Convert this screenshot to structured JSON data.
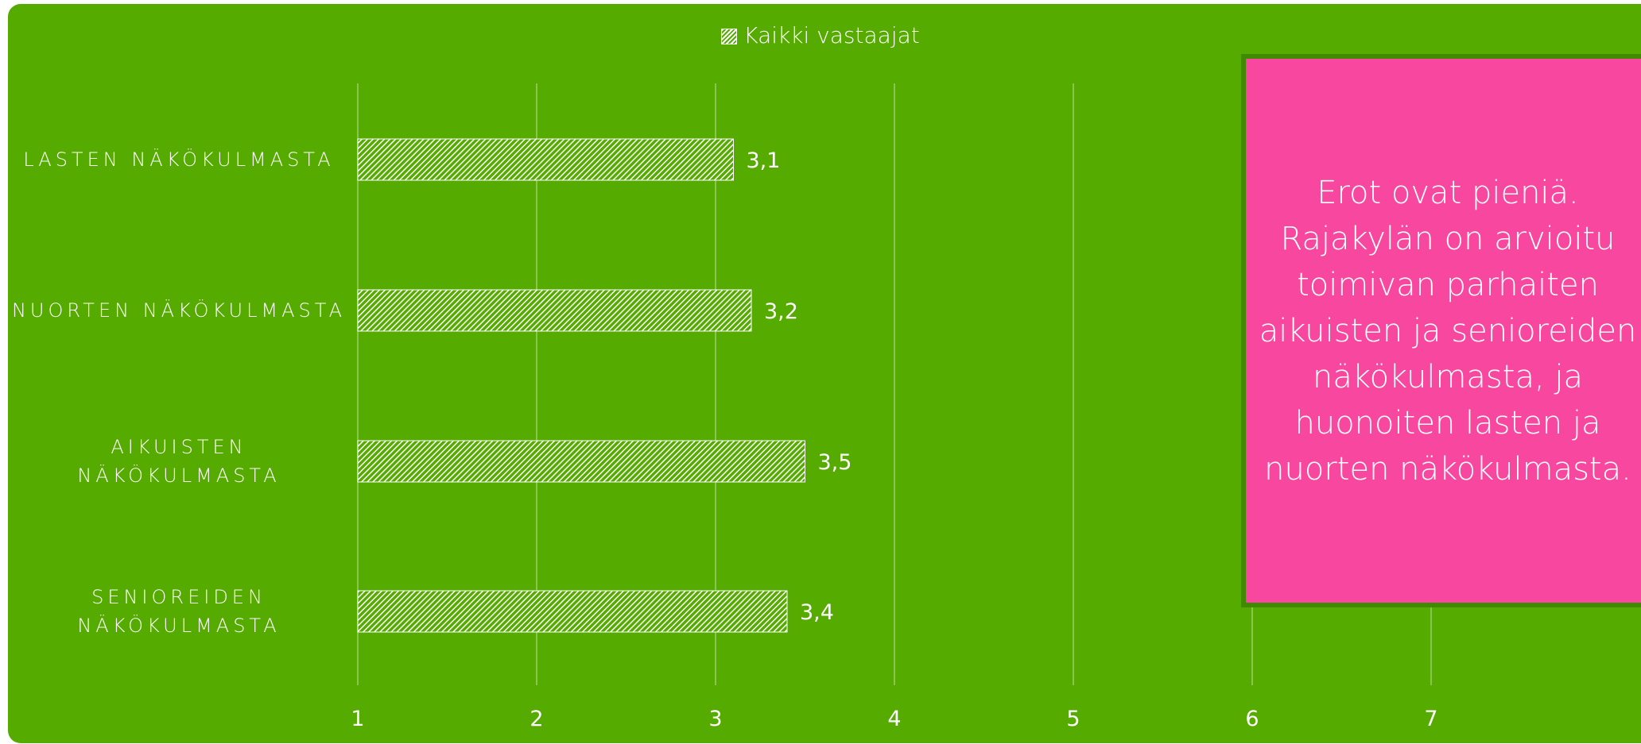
{
  "chart_data": {
    "type": "bar",
    "orientation": "horizontal",
    "categories": [
      "LASTEN NÄKÖKULMASTA",
      "NUORTEN NÄKÖKULMASTA",
      "AIKUISTEN NÄKÖKULMASTA",
      "SENIOREIDEN NÄKÖKULMASTA"
    ],
    "category_lines": [
      [
        "LASTEN NÄKÖKULMASTA"
      ],
      [
        "NUORTEN NÄKÖKULMASTA"
      ],
      [
        "AIKUISTEN",
        "NÄKÖKULMASTA"
      ],
      [
        "SENIOREIDEN",
        "NÄKÖKULMASTA"
      ]
    ],
    "series": [
      {
        "name": "Kaikki vastaajat",
        "values": [
          3.1,
          3.2,
          3.5,
          3.4
        ]
      }
    ],
    "data_labels": [
      "3,1",
      "3,2",
      "3,5",
      "3,4"
    ],
    "xticks": [
      "1",
      "2",
      "3",
      "4",
      "5",
      "6",
      "7"
    ],
    "xlim": [
      1,
      7
    ],
    "grid": true,
    "legend_position": "top",
    "fill_pattern": "diagonal-hatch",
    "colors": {
      "background": "#55ab00",
      "bar": "#ffffff",
      "grid": "#9ad06a",
      "text": "#ffffff",
      "callout_bg": "#f7479e",
      "callout_border": "#3f8a00"
    }
  },
  "callout": {
    "text": "Erot ovat pieniä. Rajakylän on arvioitu toimivan parhaiten aikuisten ja senioreiden näkökulmasta, ja huonoiten lasten ja nuorten näkökulmasta."
  }
}
